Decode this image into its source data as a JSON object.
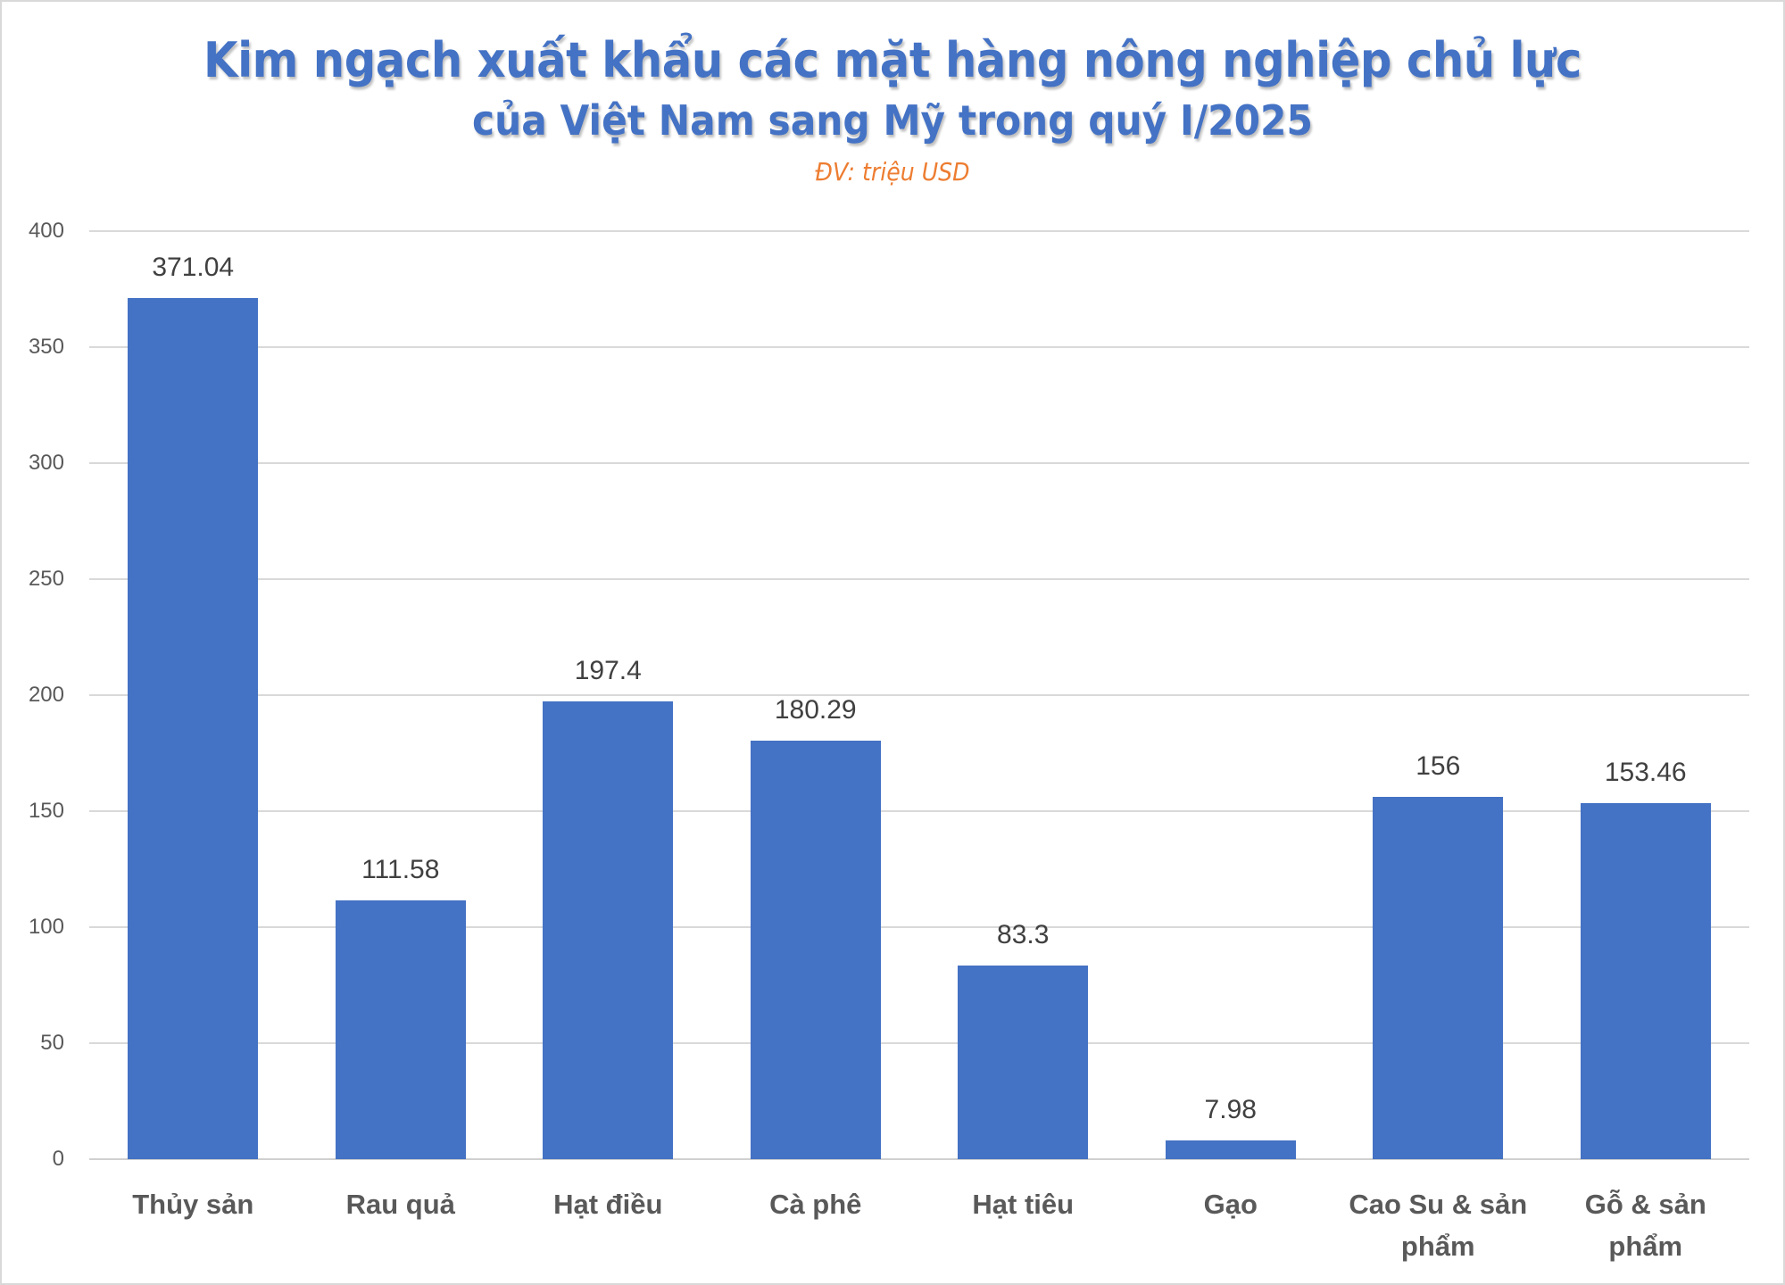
{
  "chart_data": {
    "type": "bar",
    "title": "Kim ngạch xuất khẩu các mặt hàng nông nghiệp chủ lực của Việt Nam sang Mỹ trong quý I/2025",
    "title_line1": "Kim ngạch xuất khẩu các mặt hàng nông nghiệp chủ lực",
    "title_line2": "của Việt Nam sang Mỹ trong quý I/2025",
    "subtitle": "ĐV: triệu USD",
    "xlabel": "",
    "ylabel": "",
    "ylim": [
      0,
      400
    ],
    "yticks": [
      0,
      50,
      100,
      150,
      200,
      250,
      300,
      350,
      400
    ],
    "grid": true,
    "legend": "none",
    "categories": [
      "Thủy sản",
      "Rau quả",
      "Hạt điều",
      "Cà phê",
      "Hạt tiêu",
      "Gạo",
      "Cao Su & sản phẩm",
      "Gỗ & sản phẩm"
    ],
    "category_lines": [
      [
        "Thủy sản"
      ],
      [
        "Rau quả"
      ],
      [
        "Hạt điều"
      ],
      [
        "Cà phê"
      ],
      [
        "Hạt tiêu"
      ],
      [
        "Gạo"
      ],
      [
        "Cao Su & sản",
        "phẩm"
      ],
      [
        "Gỗ & sản",
        "phẩm"
      ]
    ],
    "values": [
      371.04,
      111.58,
      197.4,
      180.29,
      83.3,
      7.98,
      156,
      153.46
    ],
    "value_labels": [
      "371.04",
      "111.58",
      "197.4",
      "180.29",
      "83.3",
      "7.98",
      "156",
      "153.46"
    ],
    "colors": {
      "bar": "#4472C4",
      "title": "#4472C4",
      "subtitle": "#ED7D31",
      "grid": "#d9d9d9",
      "axis_text": "#595959",
      "value_text": "#404040"
    }
  }
}
